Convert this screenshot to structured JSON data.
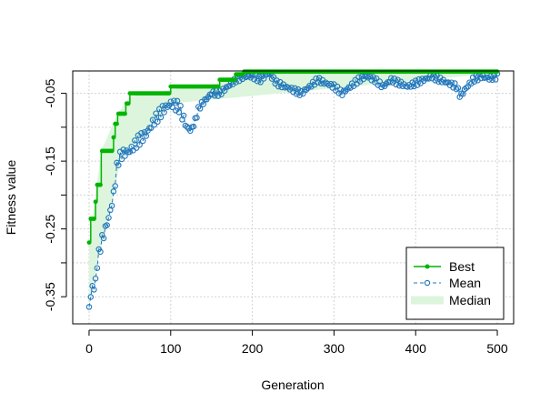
{
  "chart_data": {
    "type": "line",
    "xlabel": "Generation",
    "ylabel": "Fitness value",
    "xlim": [
      -20,
      520
    ],
    "ylim": [
      -0.39,
      -0.017
    ],
    "x_ticks": [
      0,
      100,
      200,
      300,
      400,
      500
    ],
    "y_ticks": [
      -0.35,
      -0.3,
      -0.25,
      -0.2,
      -0.15,
      -0.1,
      -0.05
    ],
    "y_tick_labels": [
      "-0.35",
      "",
      "-0.25",
      "",
      "-0.15",
      "",
      "-0.05"
    ],
    "grid": true,
    "legend_position": "bottom-right",
    "colors": {
      "best": "#00b400",
      "mean": "#2277bb",
      "median_fill": "#dcf5dc",
      "grid": "#d3d3d3"
    },
    "series": [
      {
        "name": "Best",
        "style": "step-line-filled-markers",
        "points": [
          [
            0,
            -0.27
          ],
          [
            2,
            -0.235
          ],
          [
            8,
            -0.21
          ],
          [
            10,
            -0.185
          ],
          [
            15,
            -0.135
          ],
          [
            30,
            -0.115
          ],
          [
            32,
            -0.095
          ],
          [
            35,
            -0.08
          ],
          [
            45,
            -0.065
          ],
          [
            50,
            -0.05
          ],
          [
            100,
            -0.04
          ],
          [
            160,
            -0.03
          ],
          [
            180,
            -0.022
          ],
          [
            190,
            -0.018
          ],
          [
            500,
            -0.018
          ]
        ]
      },
      {
        "name": "Mean",
        "style": "dashed-open-circles",
        "points": [
          [
            0,
            -0.365
          ],
          [
            3,
            -0.34
          ],
          [
            8,
            -0.33
          ],
          [
            10,
            -0.3
          ],
          [
            15,
            -0.27
          ],
          [
            20,
            -0.25
          ],
          [
            25,
            -0.23
          ],
          [
            30,
            -0.2
          ],
          [
            35,
            -0.15
          ],
          [
            40,
            -0.14
          ],
          [
            50,
            -0.135
          ],
          [
            60,
            -0.12
          ],
          [
            70,
            -0.11
          ],
          [
            80,
            -0.09
          ],
          [
            90,
            -0.075
          ],
          [
            100,
            -0.065
          ],
          [
            110,
            -0.07
          ],
          [
            120,
            -0.1
          ],
          [
            125,
            -0.105
          ],
          [
            130,
            -0.09
          ],
          [
            135,
            -0.07
          ],
          [
            150,
            -0.05
          ],
          [
            160,
            -0.05
          ],
          [
            170,
            -0.04
          ],
          [
            180,
            -0.03
          ],
          [
            190,
            -0.025
          ],
          [
            200,
            -0.025
          ],
          [
            210,
            -0.03
          ],
          [
            220,
            -0.02
          ],
          [
            230,
            -0.035
          ],
          [
            240,
            -0.04
          ],
          [
            250,
            -0.045
          ],
          [
            260,
            -0.05
          ],
          [
            270,
            -0.04
          ],
          [
            280,
            -0.03
          ],
          [
            290,
            -0.035
          ],
          [
            300,
            -0.04
          ],
          [
            310,
            -0.05
          ],
          [
            320,
            -0.04
          ],
          [
            330,
            -0.03
          ],
          [
            340,
            -0.025
          ],
          [
            350,
            -0.03
          ],
          [
            360,
            -0.04
          ],
          [
            370,
            -0.03
          ],
          [
            380,
            -0.035
          ],
          [
            390,
            -0.04
          ],
          [
            400,
            -0.035
          ],
          [
            410,
            -0.03
          ],
          [
            420,
            -0.025
          ],
          [
            430,
            -0.03
          ],
          [
            440,
            -0.035
          ],
          [
            450,
            -0.04
          ],
          [
            455,
            -0.055
          ],
          [
            460,
            -0.045
          ],
          [
            470,
            -0.03
          ],
          [
            480,
            -0.025
          ],
          [
            490,
            -0.028
          ],
          [
            500,
            -0.025
          ]
        ]
      },
      {
        "name": "Median",
        "style": "filled-band",
        "upper": [
          [
            0,
            -0.27
          ],
          [
            15,
            -0.135
          ],
          [
            35,
            -0.08
          ],
          [
            50,
            -0.055
          ],
          [
            100,
            -0.045
          ],
          [
            160,
            -0.035
          ],
          [
            190,
            -0.02
          ],
          [
            500,
            -0.018
          ]
        ],
        "lower": [
          [
            0,
            -0.365
          ],
          [
            10,
            -0.3
          ],
          [
            30,
            -0.2
          ],
          [
            40,
            -0.14
          ],
          [
            60,
            -0.12
          ],
          [
            80,
            -0.09
          ],
          [
            100,
            -0.065
          ],
          [
            500,
            -0.02
          ]
        ]
      }
    ]
  },
  "legend": {
    "items": [
      {
        "label": "Best"
      },
      {
        "label": "Mean"
      },
      {
        "label": "Median"
      }
    ]
  }
}
